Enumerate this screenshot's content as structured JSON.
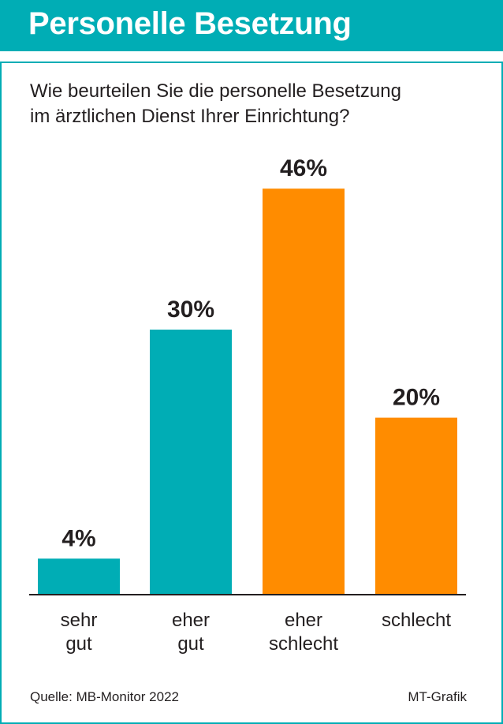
{
  "header": {
    "title": "Personelle Besetzung"
  },
  "question": {
    "line1": "Wie beurteilen Sie die personelle Besetzung",
    "line2": "im ärztlichen Dienst Ihrer Einrichtung?"
  },
  "chart_data": {
    "type": "bar",
    "categories": [
      [
        "sehr",
        "gut"
      ],
      [
        "eher",
        "gut"
      ],
      [
        "eher",
        "schlecht"
      ],
      [
        "schlecht"
      ]
    ],
    "values": [
      4,
      30,
      46,
      20
    ],
    "value_labels": [
      "4%",
      "30%",
      "46%",
      "20%"
    ],
    "colors": [
      "#00adb5",
      "#00adb5",
      "#ff8c00",
      "#ff8c00"
    ],
    "ylim": [
      0,
      46
    ],
    "grid": false
  },
  "footer": {
    "source": "Quelle: MB-Monitor 2022",
    "credit": "MT-Grafik"
  }
}
